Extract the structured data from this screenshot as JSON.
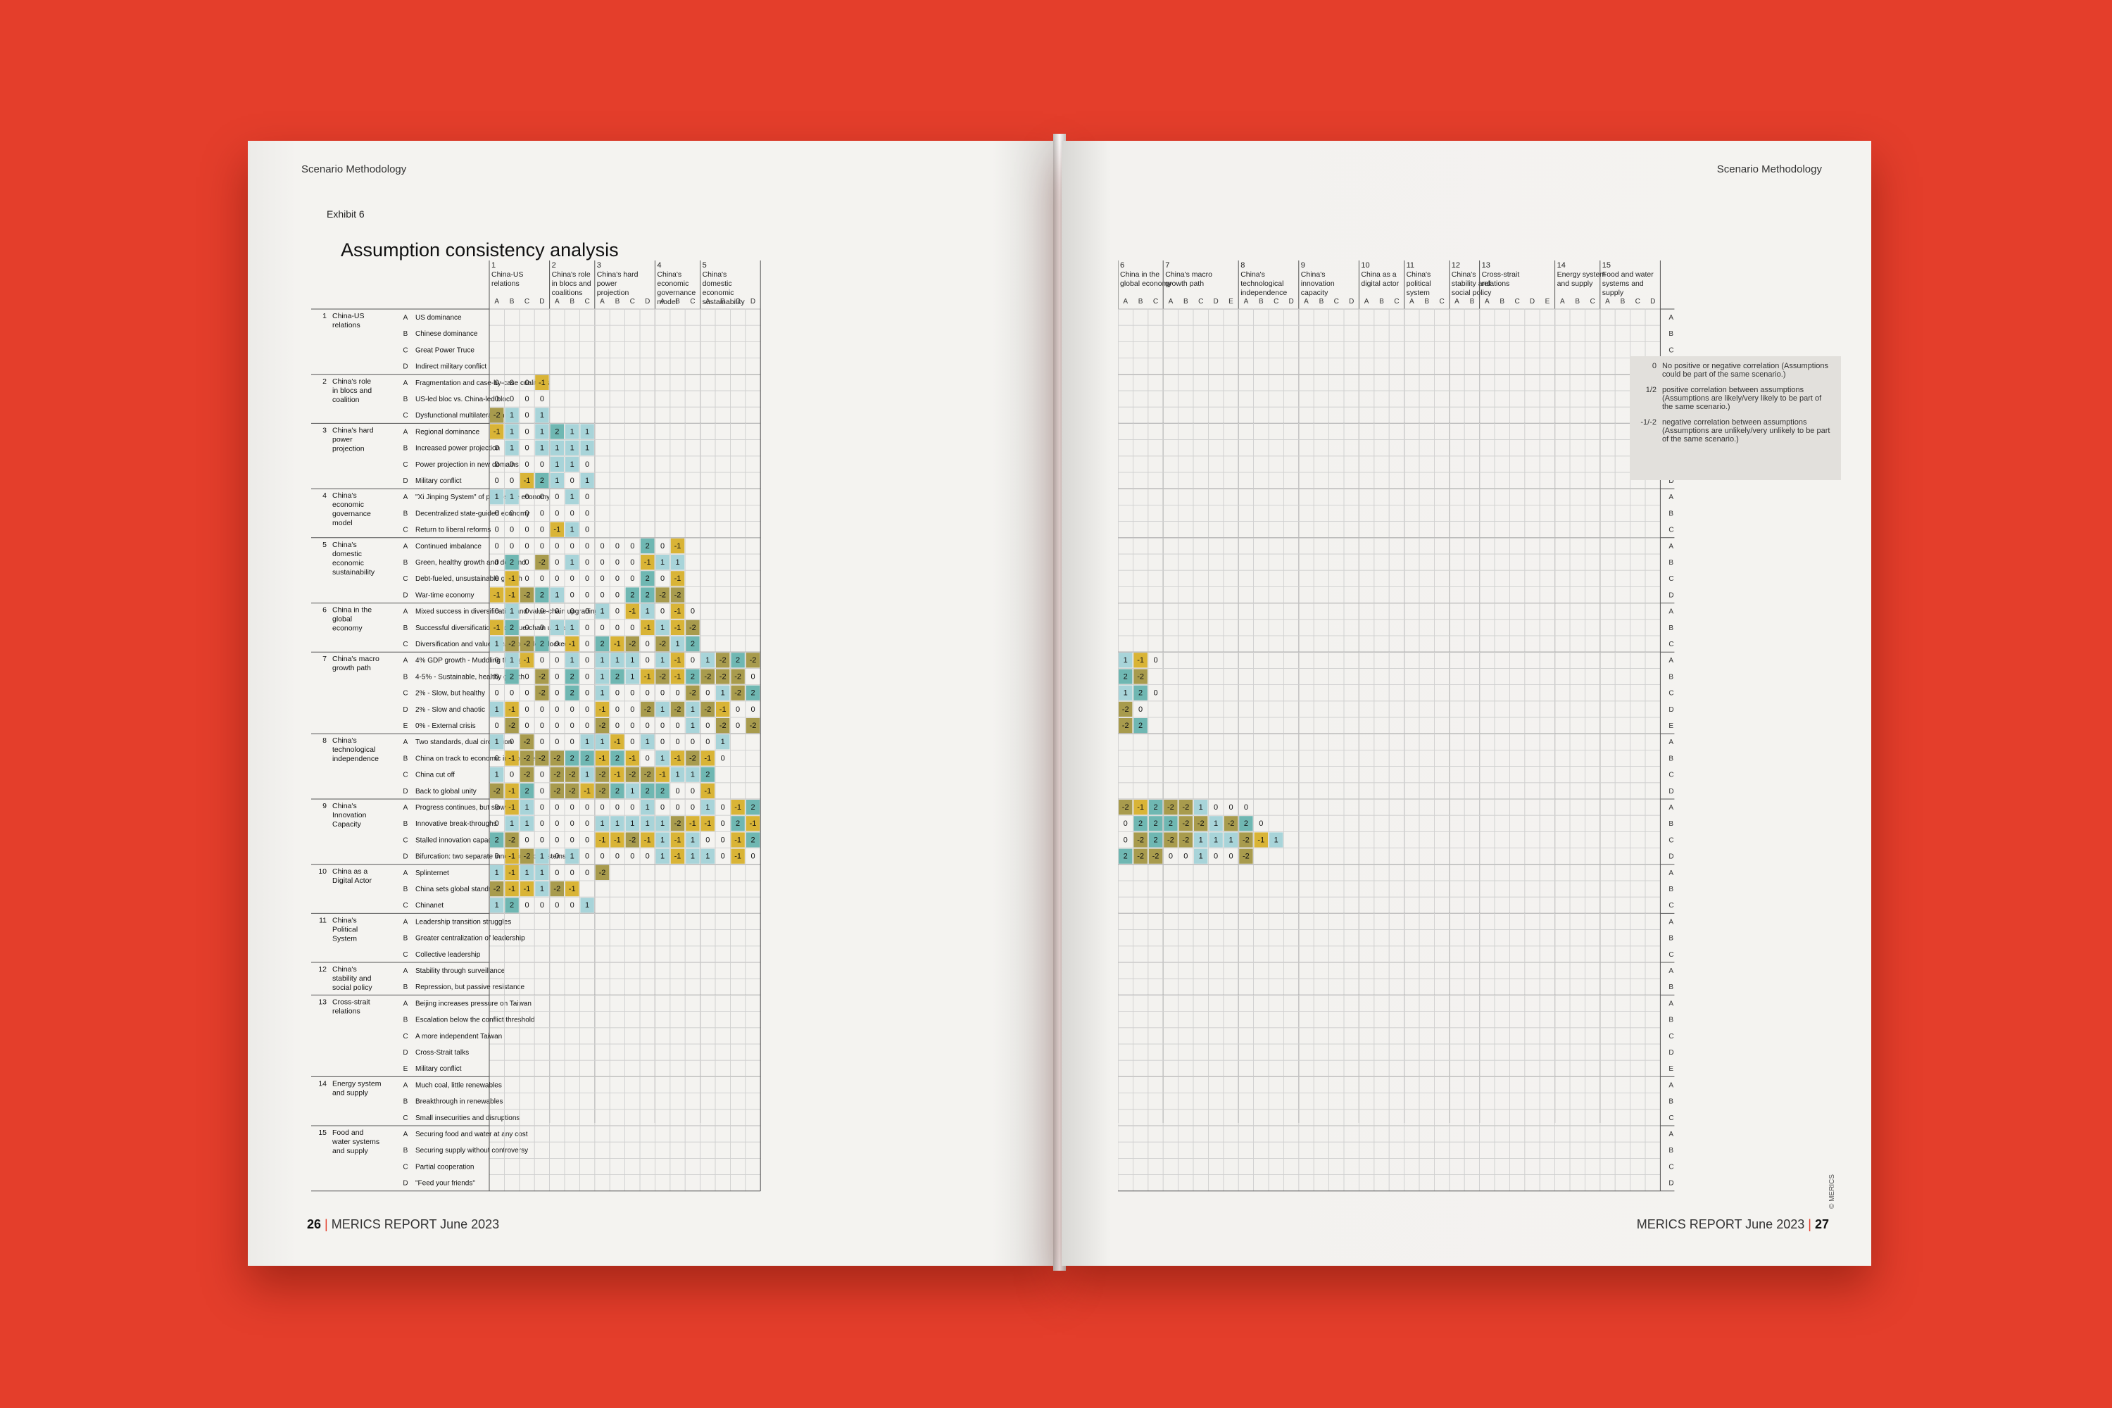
{
  "left_page": {
    "running_head": "Scenario Methodology",
    "exhibit": "Exhibit 6",
    "title": "Assumption consistency analysis",
    "folio_number": "26",
    "folio_text": "MERICS REPORT June 2023"
  },
  "right_page": {
    "running_head": "Scenario Methodology",
    "folio_number": "27",
    "folio_text": "MERICS REPORT June 2023",
    "copyright": "© MERICS"
  },
  "legend": [
    {
      "symbol": "0",
      "text": "No positive or negative correlation (Assumptions could be part of the same scenario.)"
    },
    {
      "symbol": "1/2",
      "text": "positive correlation between assumptions (Assumptions are likely/very likely to be part of the same scenario.)"
    },
    {
      "symbol": "-1/-2",
      "text": "negative correlation between assumptions (Assumptions are unlikely/very unlikely to be part of the same scenario.)"
    }
  ],
  "colors": {
    "background": "#e43e2b",
    "value_1": "#a8d4d9",
    "value_2": "#6fb7b2",
    "value_m1": "#d9b436",
    "value_m2": "#a89b4d"
  },
  "factors": [
    {
      "num": "1",
      "name": "China-US relations",
      "col_title": "China-US relations",
      "options": [
        "US dominance",
        "Chinese dominance",
        "Great Power Truce",
        "Indirect military conflict"
      ]
    },
    {
      "num": "2",
      "name": "China's role in blocs and coalition",
      "col_title": "China's role in blocs and coalitions",
      "options": [
        "Fragmentation and case-by-case coalitions",
        "US-led bloc vs. China-led bloc",
        "Dysfunctional multilateralism"
      ]
    },
    {
      "num": "3",
      "name": "China's hard power projection",
      "col_title": "China's hard power projection",
      "options": [
        "Regional dominance",
        "Increased power projection",
        "Power projection in new domains",
        "Military conflict"
      ]
    },
    {
      "num": "4",
      "name": "China's economic governance model",
      "col_title": "China's economic governance model",
      "options": [
        "\"Xi Jinping System\" of party-state economy",
        "Decentralized state-guided economy",
        "Return to liberal reforms"
      ]
    },
    {
      "num": "5",
      "name": "China's domestic economic sustainability",
      "col_title": "China's domestic economic sustainability",
      "options": [
        "Continued imbalance",
        "Green, healthy growth and demand",
        "Debt-fueled, unsustainable growth",
        "War-time economy"
      ]
    },
    {
      "num": "6",
      "name": "China in the global economy",
      "col_title": "China in the global economy",
      "options": [
        "Mixed success in diversification and value-chain upgrading",
        "Successful diversification and value-chain upgrade",
        "Diversification and value-chain upgrades blocked"
      ]
    },
    {
      "num": "7",
      "name": "China's macro growth path",
      "col_title": "China's macro growth path",
      "options": [
        "4% GDP growth - Muddling through",
        "4-5% - Sustainable, healthy growth",
        "2% - Slow, but healthy",
        "2% - Slow and chaotic",
        "0% - External crisis"
      ]
    },
    {
      "num": "8",
      "name": "China's technological independence",
      "col_title": "China's technological independence",
      "options": [
        "Two standards, dual circulation",
        "China on track to economic independence",
        "China cut off",
        "Back to global unity"
      ]
    },
    {
      "num": "9",
      "name": "China's Innovation Capacity",
      "col_title": "China's innovation capacity",
      "options": [
        "Progress continues, but slows",
        "Innovative break-throughs",
        "Stalled innovation capacity",
        "Bifurcation: two separate innovation ecosystems"
      ]
    },
    {
      "num": "10",
      "name": "China as a Digital Actor",
      "col_title": "China as a digital actor",
      "options": [
        "Splinternet",
        "China sets global standards",
        "Chinanet"
      ]
    },
    {
      "num": "11",
      "name": "China's Political System",
      "col_title": "China's political system",
      "options": [
        "Leadership transition struggles",
        "Greater centralization of leadership",
        "Collective leadership"
      ]
    },
    {
      "num": "12",
      "name": "China's stability and social policy",
      "col_title": "China's stability and social policy",
      "options": [
        "Stability through surveillance",
        "Repression, but passive resistance"
      ]
    },
    {
      "num": "13",
      "name": "Cross-strait relations",
      "col_title": "Cross-strait relations",
      "options": [
        "Beijing increases pressure on Taiwan",
        "Escalation below the conflict threshold",
        "A more independent Taiwan",
        "Cross-Strait talks",
        "Military conflict"
      ]
    },
    {
      "num": "14",
      "name": "Energy system and supply",
      "col_title": "Energy system and supply",
      "options": [
        "Much coal, little renewables",
        "Breakthrough in renewables",
        "Small insecurities and disruptions"
      ]
    },
    {
      "num": "15",
      "name": "Food and water systems and supply",
      "col_title": "Food and water systems and supply",
      "options": [
        "Securing food and water at any cost",
        "Securing supply without controversy",
        "Partial cooperation",
        "\"Feed your friends\""
      ]
    }
  ],
  "matrix": [
    "",
    "",
    "",
    "",
    "000-1",
    "0000",
    "-2101",
    "-1101|211",
    "0101|111",
    "0000|110",
    "00-12|101",
    "|110|0010",
    "|000|0000",
    "|000|0-110",
    "0000|000|000|20-1",
    "020-2|010|000|-111",
    "0-100|000|000|20-1",
    "-1-1-22|100|002|2-2-2",
    "0100|000|||10-1|10-10",
    "-1200|110|||000|-11-1-2",
    "1-2-22|0-10|||2-1-2|0-212",
    "01-10|010|1110|1-10|1-22-2|1-10",
    "020-2|020|121-1|-2-12|-2-2-2|02-2",
    "000-2|020|1000|00-2|01-22|120",
    "1-100|000|-100|-21-2|1-2-10|0-20",
    "0-200|000|-200|000|10-20|-2-22",
    "||||10-2|0001|1-101|00001",
    "||||0-1-2|-2-22|2-12-101|-1-2-10",
    "||||10-2|0-2-2|1-2-1-2|-2-1112",
    "||||-2-12|0-2-2|-1-22|12200-1",
    "0-11|000|0000|||1000|10-1|2-2-12-2-2|1000",
    "0110|000|1111|||1-2-1-1|02-1|0222-2-2|1-220",
    "2-200|000|-1-1-2-1|||1-110|0-12|0-22-2-211|1-2-11",
    "0-1-21|010|0000|||1-111|0-10|2-2-200|100-2",
    "||||1-1|1100|||||0-2|||||||||||||||||||||||||||||||||||||||||||||||||||||",
    "|-2-1-1|1-2-1|||||||||||||||||||",
    "|120|0001"
  ],
  "columns": [
    "A",
    "B",
    "C",
    "D",
    "E"
  ]
}
